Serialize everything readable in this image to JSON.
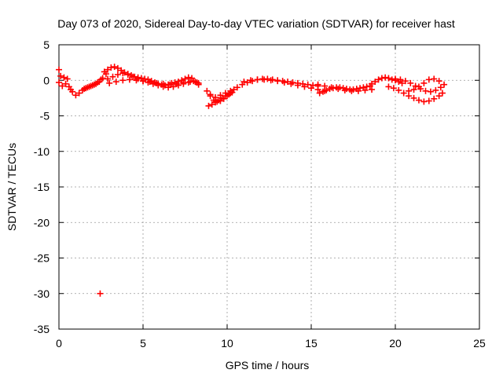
{
  "chart_data": {
    "type": "scatter",
    "title": "Day 073 of 2020, Sidereal Day-to-day VTEC variation (SDTVAR) for receiver hast",
    "xlabel": "GPS time / hours",
    "ylabel": "SDTVAR / TECUs",
    "xlim": [
      0,
      25
    ],
    "ylim": [
      -35,
      5
    ],
    "xticks": [
      "0",
      "5",
      "10",
      "15",
      "20",
      "25"
    ],
    "yticks": [
      "5",
      "0",
      "-5",
      "-10",
      "-15",
      "-20",
      "-25",
      "-30",
      "-35"
    ],
    "grid": true,
    "marker": "+",
    "series": [
      {
        "name": "SDTVAR",
        "color": "#ff0000",
        "x": [
          0.0,
          0.0,
          0.1,
          0.2,
          0.3,
          0.4,
          0.5,
          0.6,
          0.7,
          0.8,
          1.0,
          1.2,
          1.4,
          1.6,
          1.8,
          2.0,
          2.2,
          2.4,
          2.6,
          2.8,
          1.5,
          1.7,
          1.9,
          2.1,
          2.3,
          2.5,
          2.45,
          2.7,
          2.9,
          3.1,
          3.3,
          3.5,
          3.7,
          3.9,
          4.1,
          4.3,
          4.5,
          4.7,
          4.9,
          5.1,
          5.3,
          5.5,
          5.7,
          5.9,
          6.1,
          6.3,
          6.5,
          6.7,
          6.9,
          7.1,
          7.3,
          7.5,
          7.7,
          7.9,
          8.1,
          8.3,
          2.9,
          3.2,
          3.5,
          3.8,
          4.1,
          4.4,
          4.7,
          5.0,
          5.3,
          5.6,
          5.9,
          6.2,
          6.5,
          6.8,
          7.1,
          7.4,
          7.7,
          8.0,
          8.3,
          3.0,
          3.4,
          3.8,
          4.2,
          4.6,
          5.0,
          5.4,
          5.8,
          6.2,
          6.6,
          7.0,
          7.4,
          7.8,
          8.2,
          8.8,
          9.0,
          9.2,
          9.4,
          9.6,
          9.8,
          10.0,
          10.2,
          10.4,
          8.9,
          9.1,
          9.3,
          9.5,
          9.7,
          9.9,
          10.1,
          10.3,
          9.0,
          9.3,
          9.6,
          9.9,
          10.2,
          10.6,
          10.9,
          11.2,
          11.5,
          11.8,
          12.1,
          12.4,
          12.7,
          13.0,
          13.3,
          13.6,
          13.9,
          14.2,
          14.5,
          14.8,
          15.1,
          15.4,
          11.0,
          11.4,
          11.8,
          12.2,
          12.6,
          13.0,
          13.4,
          13.8,
          14.2,
          14.6,
          15.0,
          15.4,
          15.8,
          15.5,
          15.7,
          15.9,
          16.1,
          16.3,
          16.5,
          16.7,
          16.9,
          17.1,
          17.3,
          17.5,
          17.7,
          17.9,
          18.1,
          18.3,
          18.5,
          15.4,
          15.8,
          16.2,
          16.6,
          17.0,
          17.4,
          17.8,
          18.2,
          18.6,
          18.6,
          18.8,
          19.0,
          19.2,
          19.4,
          19.6,
          19.8,
          20.0,
          20.2,
          20.4,
          19.6,
          19.9,
          20.2,
          20.5,
          20.8,
          21.1,
          21.4,
          21.7,
          22.0,
          22.3,
          22.6,
          22.8,
          20.0,
          20.3,
          20.6,
          20.9,
          21.2,
          21.5,
          21.8,
          22.1,
          22.4,
          22.7,
          20.8,
          21.1,
          21.4,
          21.7,
          22.0,
          22.3,
          22.6,
          22.9
        ],
        "y": [
          1.5,
          -0.3,
          0.6,
          -0.8,
          0.4,
          -0.5,
          0.2,
          -0.9,
          -1.3,
          -1.6,
          -2.1,
          -1.8,
          -1.4,
          -1.1,
          -0.9,
          -0.7,
          -0.5,
          -0.2,
          0.3,
          0.9,
          -1.2,
          -1.0,
          -0.8,
          -0.6,
          -0.3,
          0.1,
          -30.0,
          1.2,
          1.5,
          1.8,
          1.9,
          1.7,
          1.4,
          1.1,
          0.9,
          0.7,
          0.5,
          0.4,
          0.3,
          0.2,
          0.1,
          -0.1,
          -0.3,
          -0.5,
          -0.6,
          -0.7,
          -0.6,
          -0.4,
          -0.3,
          -0.2,
          0.0,
          0.2,
          0.4,
          0.3,
          -0.2,
          -0.6,
          0.2,
          0.5,
          0.8,
          1.0,
          0.8,
          0.5,
          0.2,
          -0.1,
          -0.3,
          -0.5,
          -0.7,
          -0.9,
          -1.0,
          -0.9,
          -0.7,
          -0.5,
          -0.3,
          -0.1,
          -0.4,
          -0.4,
          -0.2,
          0.0,
          0.1,
          0.0,
          -0.1,
          -0.2,
          -0.4,
          -0.5,
          -0.6,
          -0.5,
          -0.3,
          -0.2,
          -0.3,
          -1.5,
          -2.2,
          -2.8,
          -3.0,
          -2.9,
          -2.6,
          -2.2,
          -1.8,
          -1.3,
          -3.6,
          -3.4,
          -3.1,
          -2.8,
          -2.5,
          -2.2,
          -2.0,
          -1.7,
          -2.0,
          -2.4,
          -2.1,
          -1.8,
          -1.5,
          -1.0,
          -0.6,
          -0.3,
          -0.1,
          0.1,
          0.2,
          0.2,
          0.1,
          0.0,
          -0.1,
          -0.2,
          -0.3,
          -0.4,
          -0.5,
          -0.6,
          -0.7,
          -0.8,
          -0.2,
          0.0,
          0.1,
          0.1,
          0.0,
          -0.1,
          -0.3,
          -0.5,
          -0.7,
          -0.9,
          -1.1,
          -1.3,
          -1.5,
          -1.8,
          -1.6,
          -1.4,
          -1.2,
          -1.1,
          -1.0,
          -1.0,
          -1.1,
          -1.2,
          -1.3,
          -1.3,
          -1.2,
          -1.1,
          -1.0,
          -0.9,
          -0.8,
          -0.6,
          -0.8,
          -1.0,
          -1.2,
          -1.4,
          -1.5,
          -1.5,
          -1.4,
          -1.3,
          -0.5,
          -0.2,
          0.1,
          0.3,
          0.4,
          0.3,
          0.1,
          0.0,
          -0.2,
          -0.4,
          -0.9,
          -1.1,
          -1.4,
          -1.8,
          -2.2,
          -2.5,
          -2.8,
          -3.0,
          -2.9,
          -2.6,
          -2.2,
          -1.8,
          0.2,
          0.1,
          -0.1,
          -0.4,
          -0.8,
          -1.2,
          -1.5,
          -1.6,
          -1.4,
          -1.0,
          -1.5,
          -1.3,
          -0.9,
          -0.4,
          0.1,
          0.2,
          -0.1,
          -0.6
        ]
      }
    ]
  }
}
